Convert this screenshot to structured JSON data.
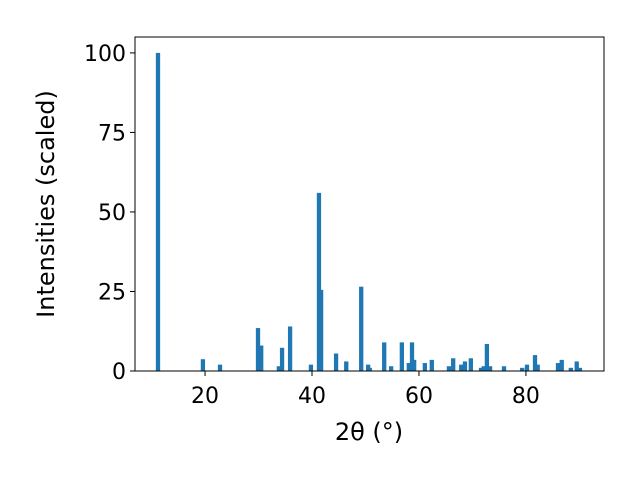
{
  "chart_data": {
    "type": "bar",
    "xlabel": "2θ (°)",
    "ylabel": "Intensities (scaled)",
    "x": [
      11.2,
      19.6,
      22.8,
      29.9,
      30.5,
      33.8,
      34.4,
      35.9,
      39.8,
      41.3,
      41.7,
      44.5,
      46.4,
      49.2,
      50.5,
      50.8,
      53.5,
      54.8,
      56.8,
      58.1,
      58.7,
      59.1,
      61.1,
      62.4,
      65.6,
      66.4,
      67.9,
      68.6,
      69.7,
      71.6,
      72.1,
      72.7,
      73.3,
      75.9,
      79.3,
      80.2,
      81.7,
      82.2,
      86.0,
      86.7,
      88.4,
      89.5,
      90.1
    ],
    "values": [
      100,
      3.7,
      2,
      13.5,
      8,
      1.5,
      7.3,
      14,
      2,
      56,
      25.5,
      5.5,
      3,
      26.5,
      2,
      1,
      9,
      1.5,
      9,
      2.5,
      9,
      3.5,
      2.5,
      3.5,
      1.5,
      4,
      2,
      3,
      4,
      1,
      1.5,
      8.5,
      1.5,
      1.5,
      1,
      2,
      5,
      2,
      2.5,
      3.5,
      1,
      3,
      1
    ],
    "color": "#1f77b4",
    "xlim": [
      6.9,
      94.6
    ],
    "ylim": [
      0,
      105
    ],
    "xticks": [
      20,
      40,
      60,
      80
    ],
    "yticks": [
      0,
      25,
      50,
      75,
      100
    ],
    "grid": false
  }
}
